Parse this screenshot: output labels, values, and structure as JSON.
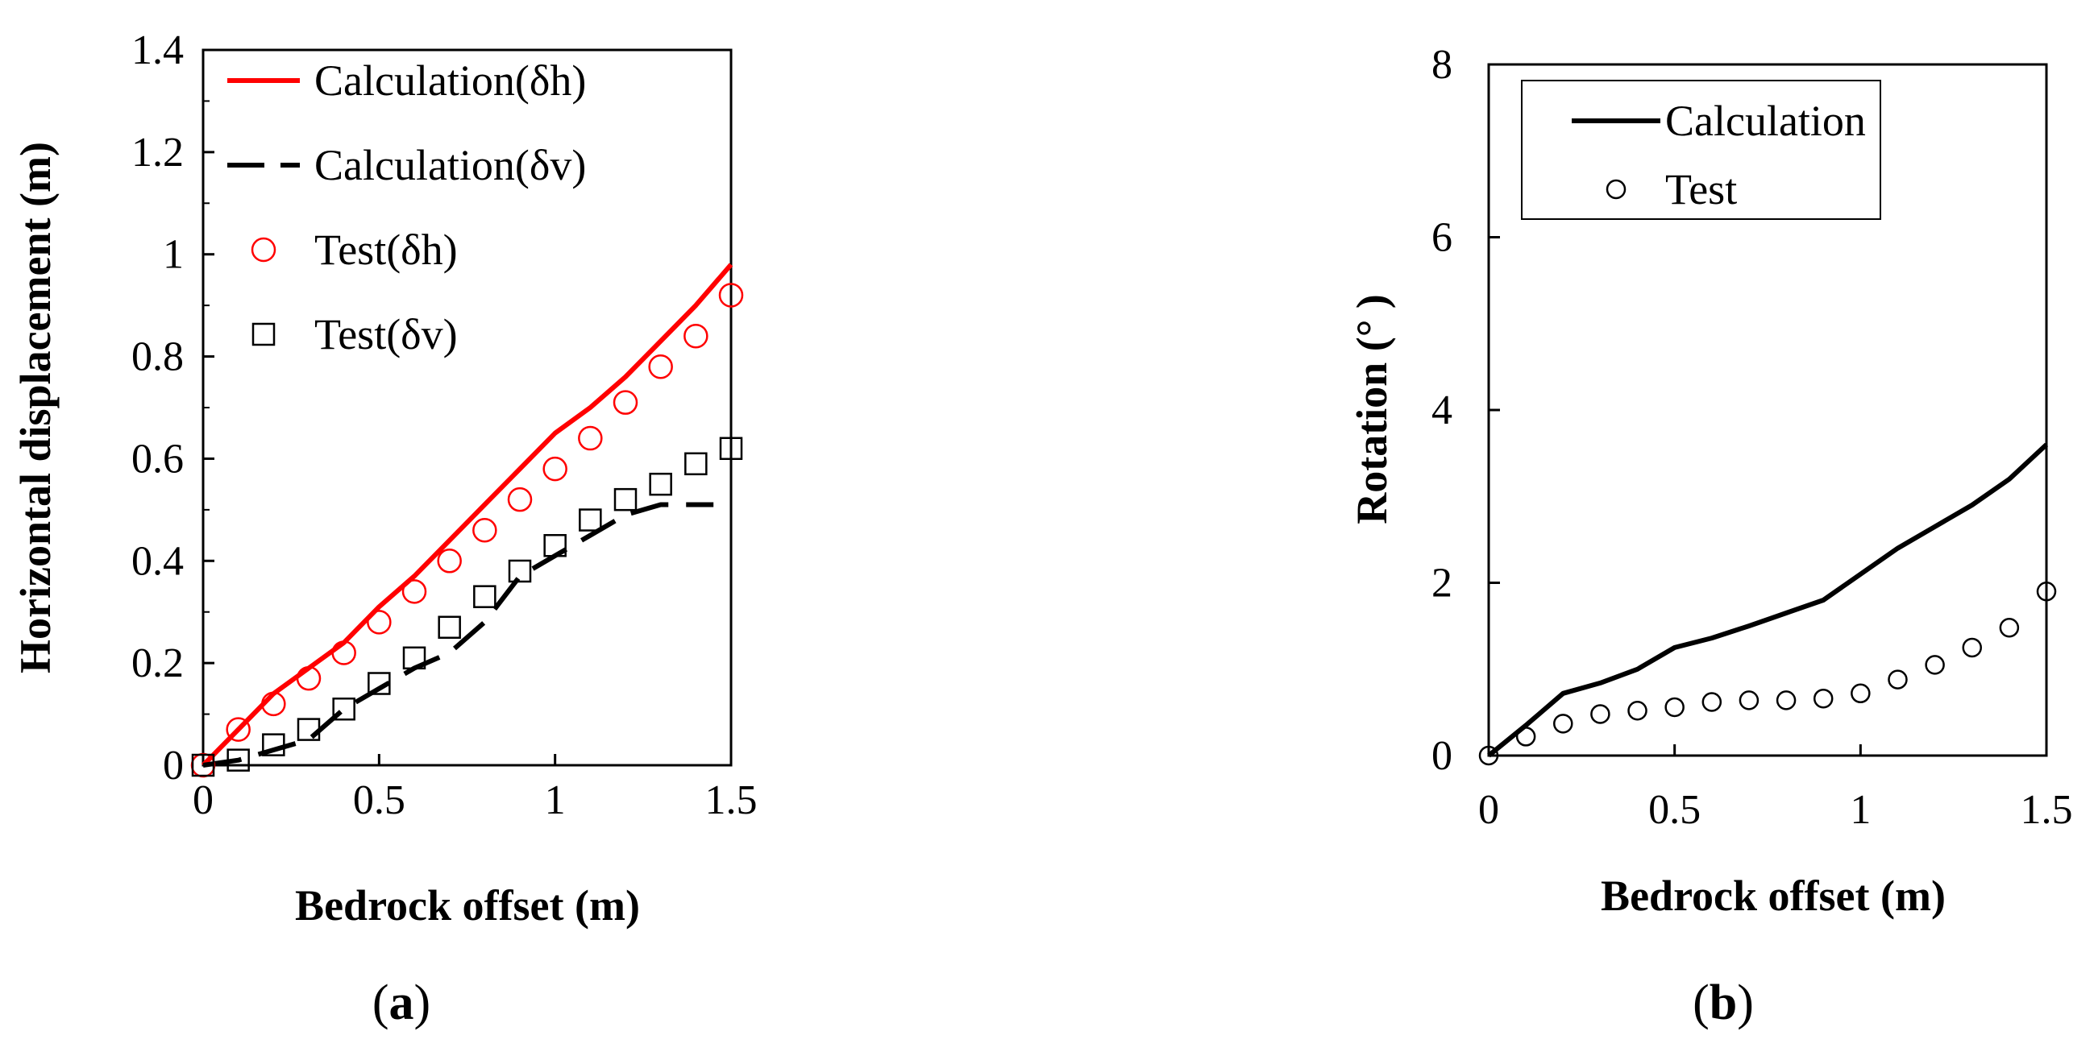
{
  "chart_data": [
    {
      "type": "line",
      "panel_label": "a",
      "xlabel": "Bedrock offset (m)",
      "ylabel": "Horizontal displacement (m)",
      "xlim": [
        0,
        1.5
      ],
      "ylim": [
        0,
        1.4
      ],
      "xticks": [
        "0",
        "0.5",
        "1",
        "1.5"
      ],
      "yticks": [
        "0",
        "0.2",
        "0.4",
        "0.6",
        "0.8",
        "1",
        "1.2",
        "1.4"
      ],
      "legend_position": "top-left",
      "series": [
        {
          "name": "Calculation(δh)",
          "kind": "line",
          "style": "solid",
          "color": "#ff0000",
          "x": [
            0,
            0.1,
            0.2,
            0.3,
            0.4,
            0.5,
            0.6,
            0.7,
            0.8,
            0.9,
            1.0,
            1.1,
            1.2,
            1.3,
            1.4,
            1.5
          ],
          "y": [
            0.0,
            0.07,
            0.14,
            0.19,
            0.24,
            0.31,
            0.37,
            0.44,
            0.51,
            0.58,
            0.65,
            0.7,
            0.76,
            0.83,
            0.9,
            0.98
          ]
        },
        {
          "name": "Calculation(δv)",
          "kind": "line",
          "style": "dashed",
          "color": "#000000",
          "x": [
            0,
            0.1,
            0.2,
            0.3,
            0.4,
            0.5,
            0.6,
            0.7,
            0.8,
            0.9,
            1.0,
            1.1,
            1.2,
            1.3,
            1.4,
            1.45
          ],
          "y": [
            0.0,
            0.01,
            0.03,
            0.05,
            0.11,
            0.15,
            0.19,
            0.22,
            0.28,
            0.37,
            0.41,
            0.45,
            0.49,
            0.51,
            0.51,
            0.51
          ]
        },
        {
          "name": "Test(δh)",
          "kind": "scatter",
          "marker": "circle",
          "color": "#ff0000",
          "x": [
            0,
            0.1,
            0.2,
            0.3,
            0.4,
            0.5,
            0.6,
            0.7,
            0.8,
            0.9,
            1.0,
            1.1,
            1.2,
            1.3,
            1.4,
            1.5
          ],
          "y": [
            0.0,
            0.07,
            0.12,
            0.17,
            0.22,
            0.28,
            0.34,
            0.4,
            0.46,
            0.52,
            0.58,
            0.64,
            0.71,
            0.78,
            0.84,
            0.92
          ]
        },
        {
          "name": "Test(δv)",
          "kind": "scatter",
          "marker": "square",
          "color": "#000000",
          "x": [
            0,
            0.1,
            0.2,
            0.3,
            0.4,
            0.5,
            0.6,
            0.7,
            0.8,
            0.9,
            1.0,
            1.1,
            1.2,
            1.3,
            1.4,
            1.5
          ],
          "y": [
            0.0,
            0.01,
            0.04,
            0.07,
            0.11,
            0.16,
            0.21,
            0.27,
            0.33,
            0.38,
            0.43,
            0.48,
            0.52,
            0.55,
            0.59,
            0.62
          ]
        }
      ]
    },
    {
      "type": "line",
      "panel_label": "b",
      "xlabel": "Bedrock offset (m)",
      "ylabel": "Rotation (° )",
      "xlim": [
        0,
        1.5
      ],
      "ylim": [
        0,
        8
      ],
      "xticks": [
        "0",
        "0.5",
        "1",
        "1.5"
      ],
      "yticks": [
        "0",
        "2",
        "4",
        "6",
        "8"
      ],
      "legend_position": "top-left",
      "series": [
        {
          "name": "Calculation",
          "kind": "line",
          "style": "solid",
          "color": "#000000",
          "x": [
            0,
            0.1,
            0.2,
            0.3,
            0.4,
            0.5,
            0.6,
            0.7,
            0.8,
            0.9,
            1.0,
            1.1,
            1.2,
            1.3,
            1.4,
            1.5
          ],
          "y": [
            0.0,
            0.35,
            0.72,
            0.84,
            1.0,
            1.25,
            1.36,
            1.5,
            1.65,
            1.8,
            2.1,
            2.4,
            2.65,
            2.9,
            3.2,
            3.6
          ]
        },
        {
          "name": "Test",
          "kind": "scatter",
          "marker": "circle",
          "color": "#000000",
          "x": [
            0,
            0.1,
            0.2,
            0.3,
            0.4,
            0.5,
            0.6,
            0.7,
            0.8,
            0.9,
            1.0,
            1.1,
            1.2,
            1.3,
            1.4,
            1.5
          ],
          "y": [
            0.0,
            0.22,
            0.37,
            0.48,
            0.52,
            0.56,
            0.62,
            0.64,
            0.64,
            0.66,
            0.72,
            0.88,
            1.05,
            1.25,
            1.48,
            1.9
          ]
        }
      ]
    }
  ]
}
